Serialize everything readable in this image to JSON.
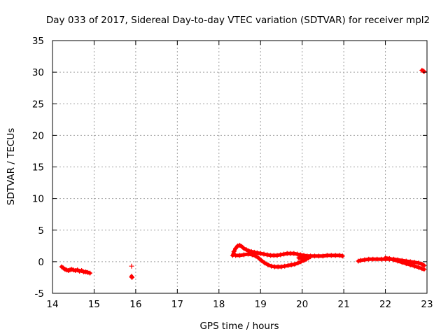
{
  "chart_data": {
    "type": "scatter",
    "title": "Day 033 of 2017, Sidereal Day-to-day VTEC variation (SDTVAR) for receiver mpl2",
    "xlabel": "GPS time / hours",
    "ylabel": "SDTVAR / TECUs",
    "xlim": [
      14,
      23
    ],
    "ylim": [
      -5,
      35
    ],
    "xticks": [
      "14",
      "15",
      "16",
      "17",
      "18",
      "19",
      "20",
      "21",
      "22",
      "23"
    ],
    "yticks": [
      "-5",
      "0",
      "5",
      "10",
      "15",
      "20",
      "25",
      "30",
      "35"
    ],
    "grid": true,
    "legend": "none",
    "series": [
      {
        "name": "SDTVAR",
        "color": "#ff0000",
        "marker": "plus",
        "points": [
          [
            14.22,
            -0.8
          ],
          [
            14.26,
            -1.0
          ],
          [
            14.3,
            -1.2
          ],
          [
            14.34,
            -1.3
          ],
          [
            14.38,
            -1.4
          ],
          [
            14.42,
            -1.3
          ],
          [
            14.46,
            -1.2
          ],
          [
            14.5,
            -1.3
          ],
          [
            14.55,
            -1.4
          ],
          [
            14.6,
            -1.3
          ],
          [
            14.65,
            -1.5
          ],
          [
            14.7,
            -1.4
          ],
          [
            14.75,
            -1.6
          ],
          [
            14.8,
            -1.6
          ],
          [
            14.85,
            -1.7
          ],
          [
            14.9,
            -1.8
          ],
          [
            15.9,
            -0.7
          ],
          [
            15.9,
            -2.3
          ],
          [
            15.91,
            -2.5
          ],
          [
            18.33,
            1.0
          ],
          [
            18.36,
            1.6
          ],
          [
            18.4,
            2.1
          ],
          [
            18.45,
            2.5
          ],
          [
            18.5,
            2.6
          ],
          [
            18.55,
            2.4
          ],
          [
            18.6,
            2.1
          ],
          [
            18.66,
            1.9
          ],
          [
            18.72,
            1.7
          ],
          [
            18.78,
            1.6
          ],
          [
            18.85,
            1.5
          ],
          [
            18.92,
            1.4
          ],
          [
            19.0,
            1.3
          ],
          [
            19.08,
            1.2
          ],
          [
            19.16,
            1.1
          ],
          [
            19.24,
            1.0
          ],
          [
            19.32,
            1.0
          ],
          [
            19.4,
            1.0
          ],
          [
            19.48,
            1.1
          ],
          [
            19.56,
            1.2
          ],
          [
            19.64,
            1.3
          ],
          [
            19.72,
            1.3
          ],
          [
            19.8,
            1.3
          ],
          [
            19.88,
            1.2
          ],
          [
            19.96,
            1.1
          ],
          [
            20.04,
            1.0
          ],
          [
            20.12,
            0.9
          ],
          [
            20.2,
            0.9
          ],
          [
            20.3,
            0.9
          ],
          [
            20.4,
            0.9
          ],
          [
            20.5,
            0.9
          ],
          [
            20.6,
            1.0
          ],
          [
            20.7,
            1.0
          ],
          [
            20.8,
            1.0
          ],
          [
            20.9,
            1.0
          ],
          [
            20.97,
            0.9
          ],
          [
            18.4,
            1.0
          ],
          [
            18.5,
            1.0
          ],
          [
            18.6,
            1.1
          ],
          [
            18.7,
            1.2
          ],
          [
            18.8,
            1.1
          ],
          [
            18.88,
            0.9
          ],
          [
            18.95,
            0.6
          ],
          [
            19.02,
            0.2
          ],
          [
            19.1,
            -0.2
          ],
          [
            19.18,
            -0.5
          ],
          [
            19.26,
            -0.7
          ],
          [
            19.34,
            -0.8
          ],
          [
            19.42,
            -0.8
          ],
          [
            19.5,
            -0.8
          ],
          [
            19.58,
            -0.7
          ],
          [
            19.66,
            -0.6
          ],
          [
            19.74,
            -0.5
          ],
          [
            19.82,
            -0.4
          ],
          [
            19.9,
            -0.2
          ],
          [
            19.97,
            0.0
          ],
          [
            20.04,
            0.2
          ],
          [
            20.1,
            0.4
          ],
          [
            20.15,
            0.6
          ],
          [
            20.2,
            0.8
          ],
          [
            19.92,
            0.6
          ],
          [
            20.0,
            0.6
          ],
          [
            20.08,
            0.7
          ],
          [
            20.16,
            0.8
          ],
          [
            21.35,
            0.1
          ],
          [
            21.4,
            0.2
          ],
          [
            21.5,
            0.3
          ],
          [
            21.6,
            0.4
          ],
          [
            21.7,
            0.4
          ],
          [
            21.8,
            0.4
          ],
          [
            21.9,
            0.4
          ],
          [
            22.0,
            0.4
          ],
          [
            22.1,
            0.4
          ],
          [
            22.2,
            0.4
          ],
          [
            22.3,
            0.3
          ],
          [
            22.4,
            0.2
          ],
          [
            22.5,
            0.1
          ],
          [
            22.6,
            0.0
          ],
          [
            22.7,
            -0.1
          ],
          [
            22.8,
            -0.2
          ],
          [
            22.88,
            -0.4
          ],
          [
            22.93,
            -0.6
          ],
          [
            22.0,
            0.6
          ],
          [
            22.1,
            0.5
          ],
          [
            22.2,
            0.3
          ],
          [
            22.3,
            0.1
          ],
          [
            22.4,
            -0.1
          ],
          [
            22.5,
            -0.3
          ],
          [
            22.6,
            -0.5
          ],
          [
            22.7,
            -0.7
          ],
          [
            22.8,
            -0.9
          ],
          [
            22.88,
            -1.1
          ],
          [
            22.93,
            -1.2
          ],
          [
            22.88,
            30.3
          ],
          [
            22.91,
            30.2
          ],
          [
            22.93,
            30.1
          ]
        ]
      }
    ]
  }
}
